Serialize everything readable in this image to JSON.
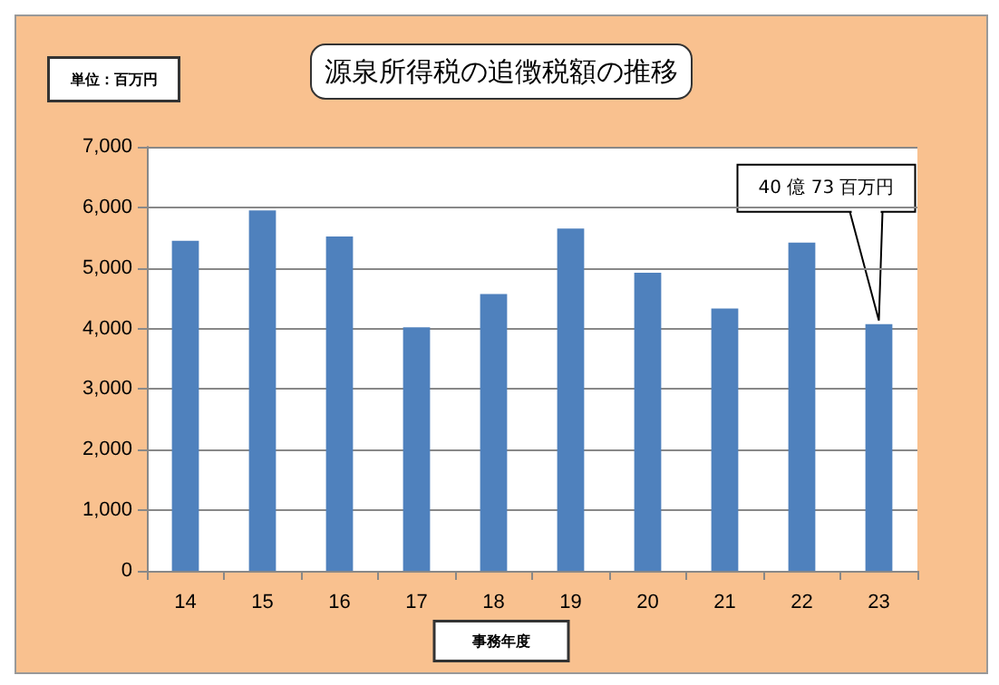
{
  "chart_data": {
    "type": "bar",
    "title": "源泉所得税の追徴税額の推移",
    "xlabel": "事務年度",
    "categories": [
      "14",
      "15",
      "16",
      "17",
      "18",
      "19",
      "20",
      "21",
      "22",
      "23"
    ],
    "values": [
      5450,
      5950,
      5520,
      4020,
      4570,
      5650,
      4920,
      4330,
      5420,
      4073
    ],
    "color": "#4f81bd",
    "ylim": [
      0,
      7000
    ],
    "yticks": [
      0,
      {
        "value": 1000,
        "label": "1,000"
      },
      {
        "value": 2000,
        "label": "2,000"
      },
      {
        "value": 3000,
        "label": "3,000"
      },
      {
        "value": 4000,
        "label": "4,000"
      },
      {
        "value": 5000,
        "label": "5,000"
      },
      {
        "value": 6000,
        "label": "6,000"
      },
      {
        "value": 7000,
        "label": "7,000"
      }
    ],
    "grid": "y",
    "annotations": [
      "単位：百万円",
      {
        "text": "40 億 73 百万円",
        "x": "23",
        "y": 4073
      }
    ]
  }
}
